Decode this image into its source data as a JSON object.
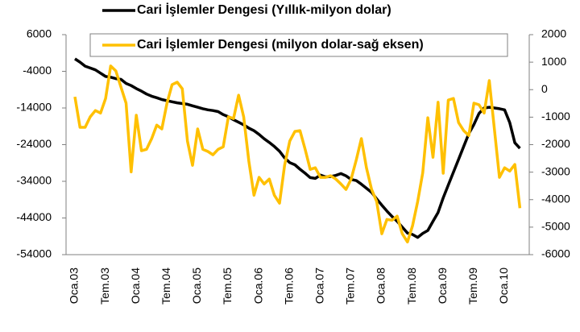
{
  "chart_data": {
    "type": "line",
    "categories": [
      "Oca.03",
      null,
      null,
      null,
      null,
      null,
      "Tem.03",
      null,
      null,
      null,
      null,
      null,
      "Oca.04",
      null,
      null,
      null,
      null,
      null,
      "Tem.04",
      null,
      null,
      null,
      null,
      null,
      "Oca.05",
      null,
      null,
      null,
      null,
      null,
      "Tem.05",
      null,
      null,
      null,
      null,
      null,
      "Oca.06",
      null,
      null,
      null,
      null,
      null,
      "Tem.06",
      null,
      null,
      null,
      null,
      null,
      "Oca.07",
      null,
      null,
      null,
      null,
      null,
      "Tem.07",
      null,
      null,
      null,
      null,
      null,
      "Oca.08",
      null,
      null,
      null,
      null,
      null,
      "Tem.08",
      null,
      null,
      null,
      null,
      null,
      "Oca.09",
      null,
      null,
      null,
      null,
      null,
      "Tem.09",
      null,
      null,
      null,
      null,
      null,
      "Oca.10",
      null,
      null,
      null
    ],
    "series": [
      {
        "name": "Cari İşlemler Dengesi (Yıllık-milyon dolar)",
        "color": "#000000",
        "axis": "y",
        "values": [
          -600,
          -1500,
          -2600,
          -3100,
          -3600,
          -4500,
          -5400,
          -5600,
          -6000,
          -6200,
          -7300,
          -7900,
          -8700,
          -9400,
          -10200,
          -10800,
          -11200,
          -11700,
          -12000,
          -12300,
          -12600,
          -12800,
          -13000,
          -13400,
          -13800,
          -14200,
          -14500,
          -14700,
          -15000,
          -15800,
          -16400,
          -17200,
          -17900,
          -18600,
          -19500,
          -20200,
          -21200,
          -22400,
          -23400,
          -24500,
          -25800,
          -27600,
          -28900,
          -29500,
          -30700,
          -31800,
          -33000,
          -33200,
          -32300,
          -32800,
          -32700,
          -32400,
          -31900,
          -32500,
          -33500,
          -33800,
          -34800,
          -35900,
          -37000,
          -38800,
          -40500,
          -42100,
          -43600,
          -44900,
          -46500,
          -48100,
          -48500,
          -49300,
          -48200,
          -47400,
          -44900,
          -42500,
          -38500,
          -35000,
          -31500,
          -28000,
          -24500,
          -21000,
          -18500,
          -15500,
          -14000,
          -13800,
          -14000,
          -14200,
          -14500,
          -18000,
          -23500,
          -25000
        ]
      },
      {
        "name": "Cari İşlemler Dengesi (milyon dolar-sağ eksen)",
        "color": "#FFC000",
        "axis": "y2",
        "values": [
          -260,
          -1370,
          -1370,
          -990,
          -760,
          -850,
          -320,
          860,
          680,
          90,
          -490,
          -2990,
          -930,
          -2220,
          -2170,
          -1780,
          -1290,
          -1430,
          -490,
          180,
          270,
          30,
          -1870,
          -2750,
          -1430,
          -2170,
          -2250,
          -2370,
          -2170,
          -2080,
          -990,
          -1050,
          -200,
          -990,
          -2600,
          -3840,
          -3190,
          -3430,
          -3250,
          -3840,
          -4130,
          -2750,
          -1870,
          -1520,
          -1490,
          -2170,
          -2900,
          -2840,
          -3190,
          -3190,
          -3130,
          -3250,
          -3430,
          -3630,
          -3250,
          -2550,
          -1780,
          -2840,
          -3630,
          -4070,
          -5240,
          -4720,
          -4750,
          -4600,
          -5240,
          -5540,
          -4950,
          -4070,
          -3020,
          -1020,
          -2460,
          -460,
          -3040,
          -380,
          -320,
          -1200,
          -1490,
          -1670,
          -490,
          -550,
          -850,
          330,
          -1430,
          -3190,
          -2840,
          -2960,
          -2720,
          -4310
        ]
      }
    ],
    "ylim": [
      -54000,
      6000
    ],
    "yticks": [
      6000,
      -4000,
      -14000,
      -24000,
      -34000,
      -44000,
      -54000
    ],
    "y2lim": [
      -6000,
      2000
    ],
    "y2ticks": [
      2000,
      1000,
      0,
      -1000,
      -2000,
      -3000,
      -4000,
      -5000,
      -6000
    ],
    "grid": false
  }
}
